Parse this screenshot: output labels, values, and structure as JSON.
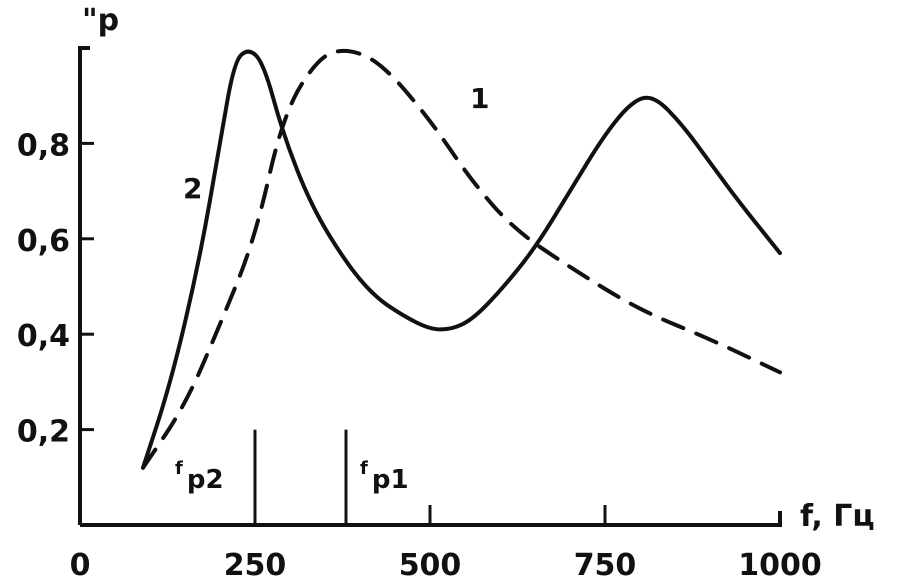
{
  "chart_data": {
    "type": "line",
    "title": "",
    "xlabel": "f, Гц",
    "ylabel": "\"p",
    "xlim": [
      0,
      1000
    ],
    "ylim": [
      0,
      1.0
    ],
    "grid": false,
    "x_ticks": [
      0,
      250,
      500,
      750,
      1000
    ],
    "x_tick_labels": [
      "0",
      "250",
      "500",
      "750",
      "1000"
    ],
    "y_ticks": [
      0.2,
      0.4,
      0.6,
      0.8
    ],
    "y_tick_labels": [
      "0,2",
      "0,4",
      "0,6",
      "0,8"
    ],
    "series": [
      {
        "name": "1",
        "style": "dashed",
        "x": [
          90,
          150,
          200,
          250,
          290,
          340,
          380,
          430,
          500,
          560,
          620,
          700,
          800,
          900,
          1000
        ],
        "y": [
          0.12,
          0.25,
          0.42,
          0.6,
          0.86,
          0.98,
          1.0,
          0.97,
          0.85,
          0.72,
          0.62,
          0.54,
          0.45,
          0.39,
          0.32
        ]
      },
      {
        "name": "2",
        "style": "solid",
        "x": [
          90,
          130,
          170,
          200,
          220,
          240,
          262,
          290,
          330,
          380,
          420,
          460,
          500,
          530,
          560,
          600,
          650,
          700,
          750,
          790,
          820,
          860,
          900,
          940,
          1000
        ],
        "y": [
          0.12,
          0.3,
          0.55,
          0.8,
          0.97,
          1.0,
          0.97,
          0.82,
          0.67,
          0.55,
          0.48,
          0.44,
          0.41,
          0.41,
          0.43,
          0.49,
          0.58,
          0.7,
          0.82,
          0.89,
          0.9,
          0.84,
          0.76,
          0.68,
          0.57
        ]
      }
    ],
    "markers": [
      {
        "label": "f",
        "subscript": "p2",
        "x": 250,
        "height": 0.2
      },
      {
        "label": "f",
        "subscript": "p1",
        "x": 380,
        "height": 0.2
      }
    ],
    "colors": {
      "ink": "#111111",
      "background": "#ffffff"
    }
  }
}
